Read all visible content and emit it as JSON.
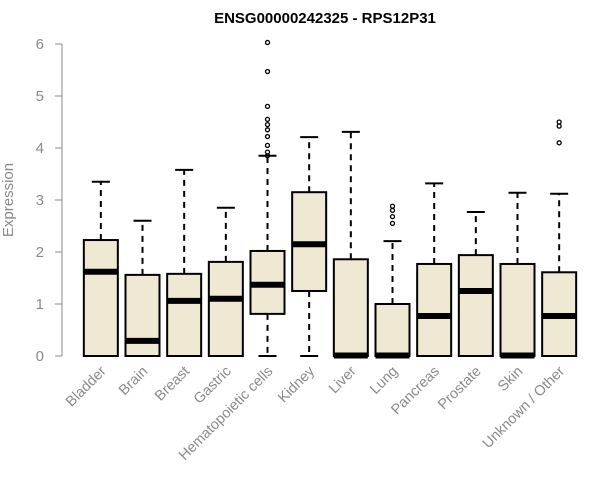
{
  "chart_data": {
    "type": "box",
    "title": "ENSG00000242325 - RPS12P31",
    "xlabel": "",
    "ylabel": "Expression",
    "ylim": [
      0,
      6
    ],
    "yticks": [
      "0",
      "1",
      "2",
      "3",
      "4",
      "5",
      "6"
    ],
    "grid": false,
    "box_fill": "#efe8d2",
    "box_stroke": "#000000",
    "categories": [
      "Bladder",
      "Brain",
      "Breast",
      "Gastric",
      "Hematopoietic cells",
      "Kidney",
      "Liver",
      "Lung",
      "Pancreas",
      "Prostate",
      "Skin",
      "Unknown / Other"
    ],
    "boxes": [
      {
        "min": 0,
        "q1": 0,
        "median": 1.62,
        "q3": 2.23,
        "max": 3.35,
        "outliers": []
      },
      {
        "min": 0,
        "q1": 0,
        "median": 0.29,
        "q3": 1.56,
        "max": 2.6,
        "outliers": []
      },
      {
        "min": 0,
        "q1": 0,
        "median": 1.06,
        "q3": 1.58,
        "max": 3.58,
        "outliers": []
      },
      {
        "min": 0,
        "q1": 0,
        "median": 1.1,
        "q3": 1.81,
        "max": 2.85,
        "outliers": []
      },
      {
        "min": 0,
        "q1": 0.81,
        "median": 1.37,
        "q3": 2.02,
        "max": 3.85,
        "outliers": [
          3.85,
          3.92,
          4.05,
          4.22,
          4.35,
          4.45,
          4.55,
          4.8,
          5.47,
          6.03
        ]
      },
      {
        "min": 0,
        "q1": 1.25,
        "median": 2.15,
        "q3": 3.15,
        "max": 4.21,
        "outliers": []
      },
      {
        "min": 0,
        "q1": 0,
        "median": 0.01,
        "q3": 1.86,
        "max": 4.31,
        "outliers": []
      },
      {
        "min": 0,
        "q1": 0,
        "median": 0.01,
        "q3": 1.0,
        "max": 2.21,
        "outliers": [
          2.55,
          2.68,
          2.8,
          2.88
        ]
      },
      {
        "min": 0,
        "q1": 0,
        "median": 0.77,
        "q3": 1.77,
        "max": 3.32,
        "outliers": []
      },
      {
        "min": 0,
        "q1": 0,
        "median": 1.25,
        "q3": 1.94,
        "max": 2.77,
        "outliers": []
      },
      {
        "min": 0,
        "q1": 0,
        "median": 0.01,
        "q3": 1.77,
        "max": 3.14,
        "outliers": []
      },
      {
        "min": 0,
        "q1": 0,
        "median": 0.77,
        "q3": 1.61,
        "max": 3.12,
        "outliers": [
          4.1,
          4.42,
          4.5
        ]
      }
    ]
  }
}
